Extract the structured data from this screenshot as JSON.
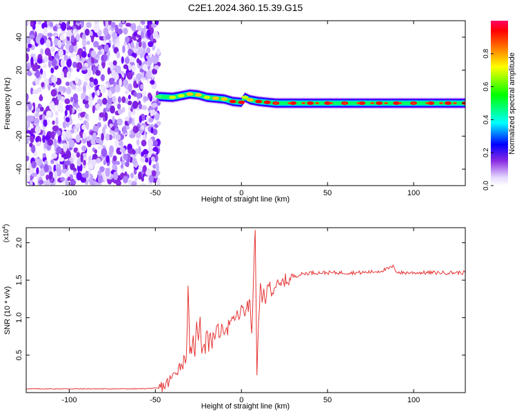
{
  "title": "C2E1.2024.360.15.39.G15",
  "chart_data": [
    {
      "type": "heatmap",
      "xlabel": "Height of straight line (km)",
      "ylabel": "Frequency (Hz)",
      "xlim": [
        -125,
        130
      ],
      "ylim": [
        -50,
        50
      ],
      "x_ticks": [
        -100,
        -50,
        0,
        50,
        100
      ],
      "y_ticks": [
        -40,
        -20,
        0,
        20,
        40
      ],
      "colorbar": {
        "label": "Normalized spectral amplitude",
        "range": [
          0.0,
          1.0
        ],
        "ticks": [
          0.0,
          0.2,
          0.4,
          0.6,
          0.8
        ]
      },
      "noise_region_x": [
        -125,
        -48
      ],
      "signal_track": {
        "x": [
          -48,
          -40,
          -35,
          -30,
          -25,
          -20,
          -15,
          -10,
          -5,
          0,
          2,
          5,
          10,
          15,
          20,
          30,
          40,
          50,
          60,
          70,
          80,
          90,
          100,
          110,
          120,
          130
        ],
        "freq_hz": [
          4,
          3.5,
          4.5,
          5.5,
          5,
          3.5,
          3,
          2.5,
          1,
          0.5,
          3.5,
          2,
          1,
          0.5,
          0,
          0,
          0,
          0,
          0,
          0,
          0,
          0,
          0,
          0,
          0,
          0
        ],
        "peak_amplitude": [
          0.45,
          0.65,
          0.7,
          0.75,
          0.8,
          0.7,
          0.75,
          0.8,
          0.85,
          0.95,
          0.7,
          0.8,
          0.85,
          0.9,
          0.9,
          0.9,
          0.9,
          0.9,
          0.9,
          0.9,
          0.9,
          0.9,
          0.9,
          0.9,
          0.9,
          0.9
        ]
      }
    },
    {
      "type": "line",
      "xlabel": "Height of straight line (km)",
      "ylabel": "SNR (10 * v/v)",
      "y_multiplier": "(x10",
      "y_multiplier_exp": "4",
      "xlim": [
        -125,
        130
      ],
      "ylim": [
        0.0,
        2.2
      ],
      "x_ticks": [
        -100,
        -50,
        0,
        50,
        100
      ],
      "y_ticks": [
        0.5,
        1.0,
        1.5,
        2.0
      ],
      "series": [
        {
          "color": "#e63333",
          "x": [
            -125,
            -100,
            -60,
            -48,
            -44,
            -42,
            -40,
            -38,
            -36,
            -34,
            -32,
            -31,
            -30,
            -29,
            -28,
            -27,
            -26,
            -25,
            -24,
            -23,
            -22,
            -21,
            -20,
            -19,
            -18,
            -17,
            -16,
            -15,
            -14,
            -13,
            -12,
            -11,
            -10,
            -9,
            -8,
            -7,
            -6,
            -5,
            -4,
            -3,
            -2,
            -1,
            0,
            1,
            2,
            3,
            4,
            5,
            6,
            7,
            8,
            9,
            10,
            11,
            12,
            13,
            14,
            15,
            16,
            18,
            20,
            22,
            25,
            28,
            30,
            35,
            40,
            45,
            50,
            60,
            70,
            80,
            85,
            88,
            90,
            92,
            95,
            100,
            110,
            120,
            130
          ],
          "y": [
            0.05,
            0.05,
            0.05,
            0.06,
            0.1,
            0.15,
            0.2,
            0.3,
            0.35,
            0.4,
            0.5,
            1.35,
            0.6,
            0.45,
            0.7,
            0.55,
            0.9,
            0.75,
            1.05,
            0.5,
            0.7,
            0.55,
            0.9,
            0.6,
            0.8,
            0.65,
            0.85,
            0.7,
            0.9,
            0.75,
            0.85,
            0.8,
            0.85,
            0.9,
            0.85,
            0.95,
            0.9,
            0.95,
            1.0,
            1.0,
            1.05,
            1.0,
            1.1,
            1.15,
            1.05,
            1.2,
            1.1,
            1.25,
            0.7,
            1.6,
            2.1,
            0.3,
            0.9,
            1.4,
            1.2,
            1.35,
            1.25,
            1.35,
            1.45,
            1.35,
            1.45,
            1.4,
            1.5,
            1.5,
            1.55,
            1.58,
            1.6,
            1.6,
            1.6,
            1.6,
            1.6,
            1.62,
            1.65,
            1.68,
            1.62,
            1.6,
            1.6,
            1.6,
            1.6,
            1.6,
            1.6
          ]
        }
      ]
    }
  ]
}
